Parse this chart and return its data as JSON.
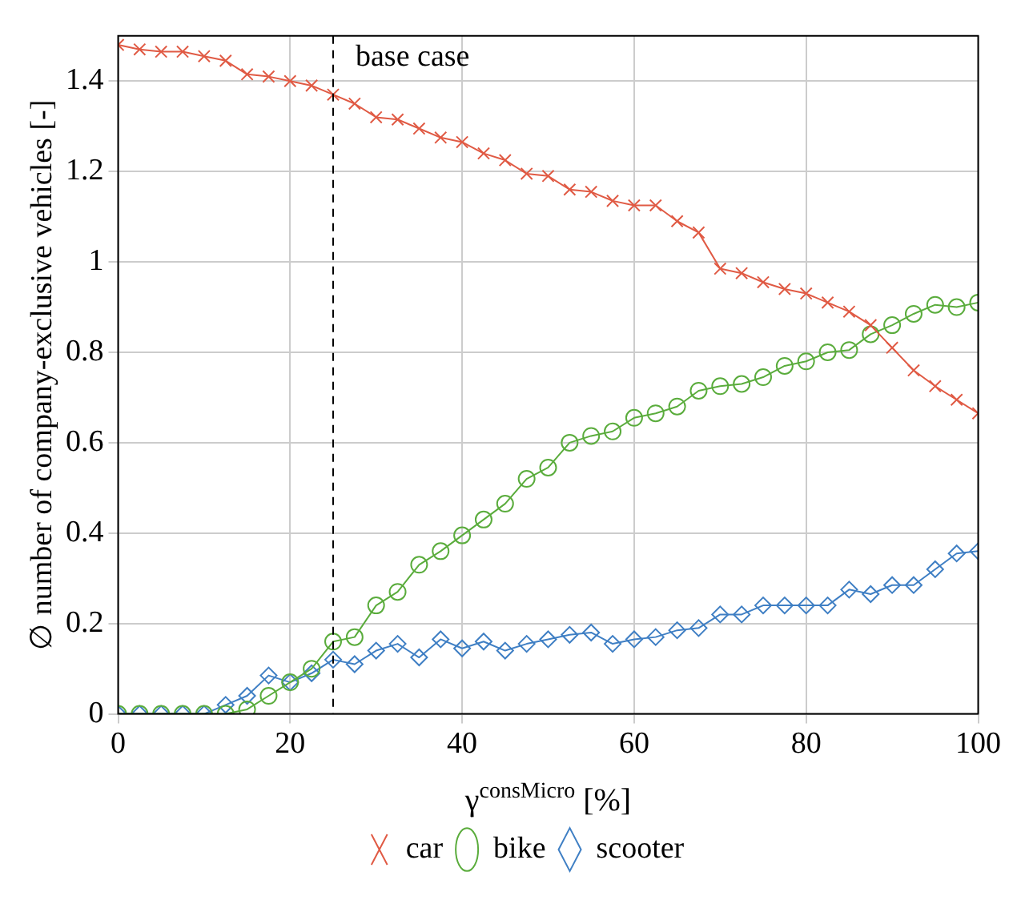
{
  "chart_data": {
    "type": "line",
    "xlabel": "γ$^{consMicro}$ [%]",
    "ylabel": "∅ number of company-exclusive vehicles [-]",
    "x": [
      0,
      2.5,
      5,
      7.5,
      10,
      12.5,
      15,
      17.5,
      20,
      22.5,
      25,
      27.5,
      30,
      32.5,
      35,
      37.5,
      40,
      42.5,
      45,
      47.5,
      50,
      52.5,
      55,
      57.5,
      60,
      62.5,
      65,
      67.5,
      70,
      72.5,
      75,
      77.5,
      80,
      82.5,
      85,
      87.5,
      90,
      92.5,
      95,
      97.5,
      100
    ],
    "series": [
      {
        "name": "car",
        "color": "#e05a44",
        "marker": "cross",
        "values": [
          1.48,
          1.47,
          1.465,
          1.465,
          1.455,
          1.445,
          1.415,
          1.41,
          1.4,
          1.39,
          1.37,
          1.35,
          1.32,
          1.315,
          1.295,
          1.275,
          1.265,
          1.24,
          1.225,
          1.195,
          1.19,
          1.16,
          1.155,
          1.135,
          1.125,
          1.125,
          1.09,
          1.065,
          0.985,
          0.975,
          0.955,
          0.94,
          0.93,
          0.91,
          0.89,
          0.86,
          0.81,
          0.76,
          0.725,
          0.695,
          0.665
        ]
      },
      {
        "name": "bike",
        "color": "#5aac3c",
        "marker": "circle",
        "values": [
          0,
          0,
          0,
          0,
          0,
          0,
          0.01,
          0.04,
          0.07,
          0.1,
          0.16,
          0.17,
          0.24,
          0.27,
          0.33,
          0.36,
          0.395,
          0.43,
          0.465,
          0.52,
          0.545,
          0.6,
          0.615,
          0.625,
          0.655,
          0.665,
          0.68,
          0.715,
          0.725,
          0.73,
          0.745,
          0.77,
          0.78,
          0.8,
          0.805,
          0.84,
          0.86,
          0.885,
          0.905,
          0.9,
          0.91
        ]
      },
      {
        "name": "scooter",
        "color": "#3f7fc4",
        "marker": "diamond",
        "values": [
          0,
          0,
          0,
          0,
          0,
          0.02,
          0.04,
          0.085,
          0.07,
          0.09,
          0.12,
          0.11,
          0.14,
          0.155,
          0.125,
          0.165,
          0.145,
          0.16,
          0.14,
          0.155,
          0.165,
          0.175,
          0.18,
          0.155,
          0.165,
          0.17,
          0.185,
          0.19,
          0.22,
          0.22,
          0.24,
          0.24,
          0.24,
          0.24,
          0.275,
          0.265,
          0.285,
          0.285,
          0.32,
          0.355,
          0.36
        ]
      }
    ],
    "xlim": [
      0,
      100
    ],
    "xticks": [
      0,
      20,
      40,
      60,
      80,
      100
    ],
    "ylim": [
      0,
      1.5
    ],
    "yticks": [
      0,
      {
        "value": 0.2,
        "label": "0.2"
      },
      {
        "value": 0.4,
        "label": "0.4"
      },
      {
        "value": 0.6,
        "label": "0.6"
      },
      {
        "value": 0.8,
        "label": "0.8"
      },
      1,
      {
        "value": 1.2,
        "label": "1.2"
      },
      {
        "value": 1.4,
        "label": "1.4"
      }
    ],
    "ref_lines": [
      {
        "axis": "x",
        "value": 25,
        "label": "base case",
        "color": "#000000",
        "line_style": "dashed"
      }
    ],
    "grid": true,
    "legend": "bottom",
    "line_style": "solid"
  }
}
